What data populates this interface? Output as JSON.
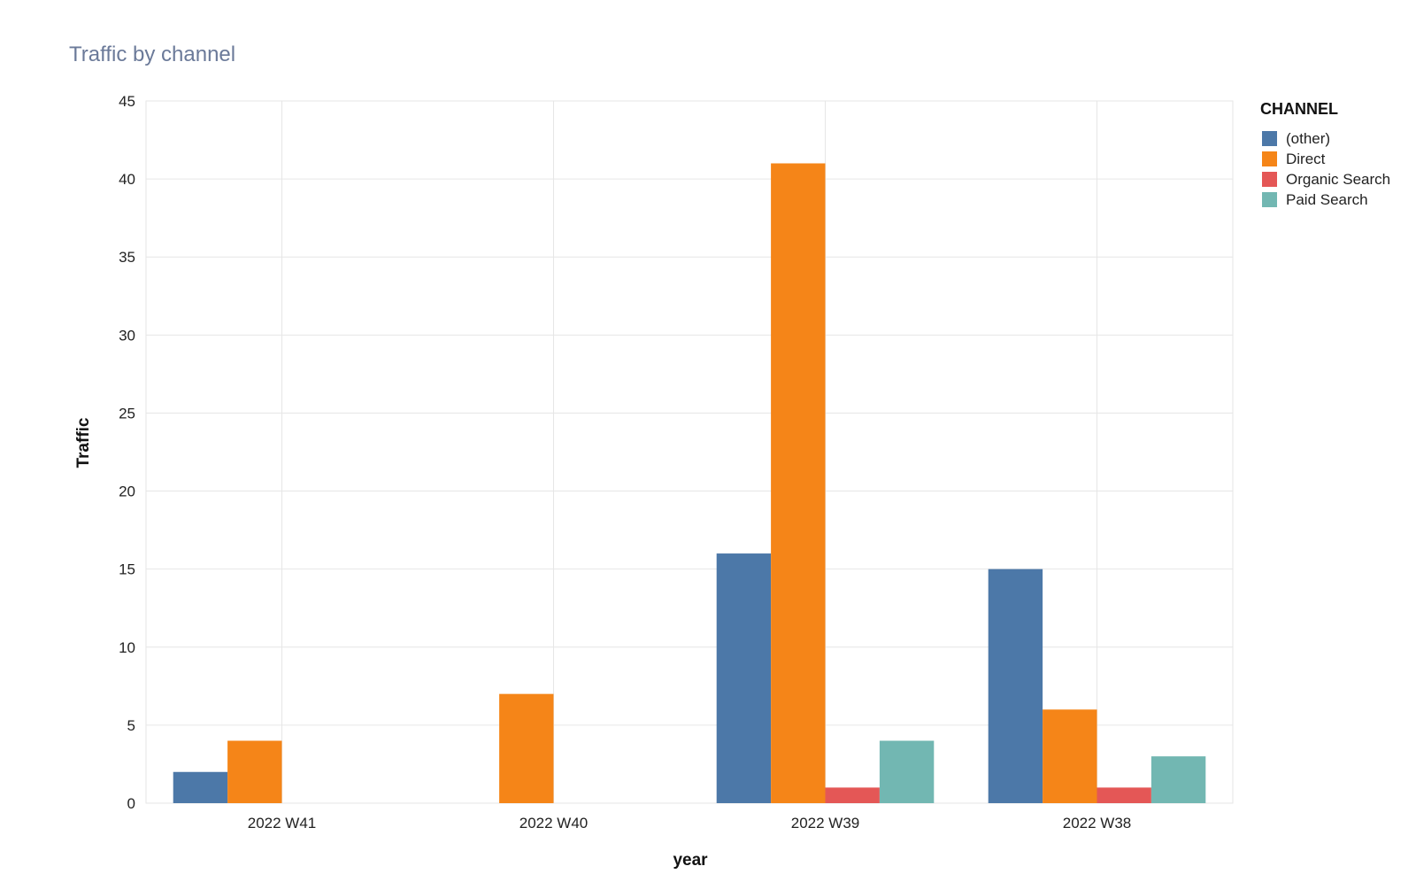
{
  "chart_data": {
    "type": "bar",
    "title": "Traffic by channel",
    "xlabel": "year",
    "ylabel": "Traffic",
    "ylim": [
      0,
      45
    ],
    "yticks": [
      0,
      5,
      10,
      15,
      20,
      25,
      30,
      35,
      40,
      45
    ],
    "categories": [
      "2022 W41",
      "2022 W40",
      "2022 W39",
      "2022 W38"
    ],
    "legend_title": "CHANNEL",
    "legend_position": "right",
    "grid": true,
    "series": [
      {
        "name": "(other)",
        "color": "#4c78a8",
        "values": [
          2,
          0,
          16,
          15
        ]
      },
      {
        "name": "Direct",
        "color": "#f58518",
        "values": [
          4,
          7,
          41,
          6
        ]
      },
      {
        "name": "Organic Search",
        "color": "#e45756",
        "values": [
          0,
          0,
          1,
          1
        ]
      },
      {
        "name": "Paid Search",
        "color": "#72b7b2",
        "values": [
          0,
          0,
          4,
          3
        ]
      }
    ]
  }
}
